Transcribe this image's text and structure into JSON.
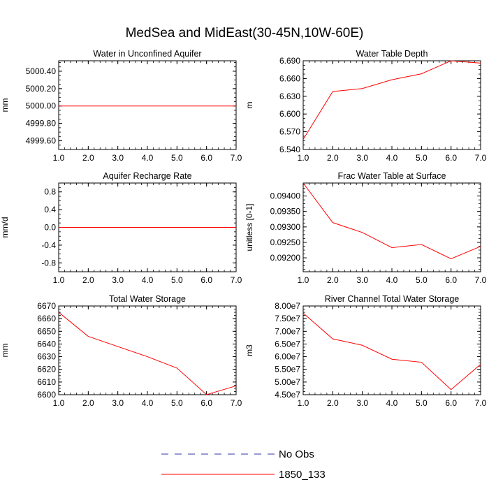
{
  "title": "MedSea and MidEast(30-45N,10W-60E)",
  "colors": {
    "series": "#ff0000",
    "obs": "#3333aa",
    "axis": "#000000"
  },
  "legend": {
    "items": [
      {
        "label": "No Obs",
        "style": "dashed",
        "color": "#3333aa"
      },
      {
        "label": "1850_133",
        "style": "solid",
        "color": "#ff0000"
      }
    ]
  },
  "chart_data": [
    {
      "type": "line",
      "title": "Water in Unconfined Aquifer",
      "xlabel": "",
      "ylabel": "mm",
      "xlim": [
        1,
        7
      ],
      "ylim": [
        4999.5,
        5000.52
      ],
      "xticks": [
        1,
        2,
        3,
        4,
        5,
        6,
        7
      ],
      "xtick_labels": [
        "1.0",
        "2.0",
        "3.0",
        "4.0",
        "5.0",
        "6.0",
        "7.0"
      ],
      "yticks": [
        4999.6,
        4999.8,
        5000.0,
        5000.2,
        5000.4
      ],
      "ytick_labels": [
        "4999.60",
        "4999.80",
        "5000.00",
        "5000.20",
        "5000.40"
      ],
      "series": [
        {
          "name": "1850_133",
          "x": [
            1,
            2,
            3,
            4,
            5,
            6,
            7
          ],
          "values": [
            5000,
            5000,
            5000,
            5000,
            5000,
            5000,
            5000
          ]
        }
      ]
    },
    {
      "type": "line",
      "title": "Water Table Depth",
      "xlabel": "",
      "ylabel": "m",
      "xlim": [
        1,
        7
      ],
      "ylim": [
        6.54,
        6.69
      ],
      "xticks": [
        1,
        2,
        3,
        4,
        5,
        6,
        7
      ],
      "xtick_labels": [
        "1.0",
        "2.0",
        "3.0",
        "4.0",
        "5.0",
        "6.0",
        "7.0"
      ],
      "yticks": [
        6.54,
        6.57,
        6.6,
        6.63,
        6.66,
        6.69
      ],
      "ytick_labels": [
        "6.540",
        "6.570",
        "6.600",
        "6.630",
        "6.660",
        "6.690"
      ],
      "series": [
        {
          "name": "1850_133",
          "x": [
            1,
            2,
            3,
            4,
            5,
            6,
            7
          ],
          "values": [
            6.557,
            6.638,
            6.643,
            6.658,
            6.668,
            6.69,
            6.686
          ]
        }
      ]
    },
    {
      "type": "line",
      "title": "Aquifer Recharge Rate",
      "xlabel": "",
      "ylabel": "mm/d",
      "xlim": [
        1,
        7
      ],
      "ylim": [
        -1,
        1
      ],
      "xticks": [
        1,
        2,
        3,
        4,
        5,
        6,
        7
      ],
      "xtick_labels": [
        "1.0",
        "2.0",
        "3.0",
        "4.0",
        "5.0",
        "6.0",
        "7.0"
      ],
      "yticks": [
        -0.8,
        -0.4,
        0.0,
        0.4,
        0.8
      ],
      "ytick_labels": [
        "-0.8",
        "-0.4",
        "0.0",
        "0.4",
        "0.8"
      ],
      "series": [
        {
          "name": "1850_133",
          "x": [
            1,
            2,
            3,
            4,
            5,
            6,
            7
          ],
          "values": [
            0,
            0,
            0,
            0,
            0,
            0,
            0
          ]
        }
      ]
    },
    {
      "type": "line",
      "title": "Frac Water Table at Surface",
      "xlabel": "",
      "ylabel": "unitless [0-1]",
      "xlim": [
        1,
        7
      ],
      "ylim": [
        0.09155,
        0.09442
      ],
      "xticks": [
        1,
        2,
        3,
        4,
        5,
        6,
        7
      ],
      "xtick_labels": [
        "1.0",
        "2.0",
        "3.0",
        "4.0",
        "5.0",
        "6.0",
        "7.0"
      ],
      "yticks": [
        0.092,
        0.0925,
        0.093,
        0.0935,
        0.094
      ],
      "ytick_labels": [
        "0.09200",
        "0.09250",
        "0.09300",
        "0.09350",
        "0.09400"
      ],
      "series": [
        {
          "name": "1850_133",
          "x": [
            1,
            2,
            3,
            4,
            5,
            6,
            7
          ],
          "values": [
            0.09442,
            0.09314,
            0.09282,
            0.09233,
            0.09243,
            0.09197,
            0.09237
          ]
        }
      ]
    },
    {
      "type": "line",
      "title": "Total Water Storage",
      "xlabel": "",
      "ylabel": "mm",
      "xlim": [
        1,
        7
      ],
      "ylim": [
        6600,
        6670
      ],
      "xticks": [
        1,
        2,
        3,
        4,
        5,
        6,
        7
      ],
      "xtick_labels": [
        "1.0",
        "2.0",
        "3.0",
        "4.0",
        "5.0",
        "6.0",
        "7.0"
      ],
      "yticks": [
        6600,
        6610,
        6620,
        6630,
        6640,
        6650,
        6660,
        6670
      ],
      "ytick_labels": [
        "6600",
        "6610",
        "6620",
        "6630",
        "6640",
        "6650",
        "6660",
        "6670"
      ],
      "series": [
        {
          "name": "1850_133",
          "x": [
            1,
            2,
            3,
            4,
            5,
            6,
            7
          ],
          "values": [
            6665,
            6646,
            6638,
            6630,
            6621,
            6600,
            6607
          ]
        }
      ]
    },
    {
      "type": "line",
      "title": "River Channel Total Water Storage",
      "xlabel": "",
      "ylabel": "m3",
      "xlim": [
        1,
        7
      ],
      "ylim": [
        45000000,
        80000000
      ],
      "xticks": [
        1,
        2,
        3,
        4,
        5,
        6,
        7
      ],
      "xtick_labels": [
        "1.0",
        "2.0",
        "3.0",
        "4.0",
        "5.0",
        "6.0",
        "7.0"
      ],
      "yticks": [
        45000000,
        50000000,
        55000000,
        60000000,
        65000000,
        70000000,
        75000000,
        80000000
      ],
      "ytick_labels": [
        "4.50e7",
        "5.00e7",
        "5.50e7",
        "6.00e7",
        "6.50e7",
        "7.00e7",
        "7.50e7",
        "8.00e7"
      ],
      "series": [
        {
          "name": "1850_133",
          "x": [
            1,
            2,
            3,
            4,
            5,
            6,
            7
          ],
          "values": [
            77200000,
            67000000,
            64500000,
            59000000,
            57800000,
            47000000,
            57000000
          ]
        }
      ]
    }
  ]
}
